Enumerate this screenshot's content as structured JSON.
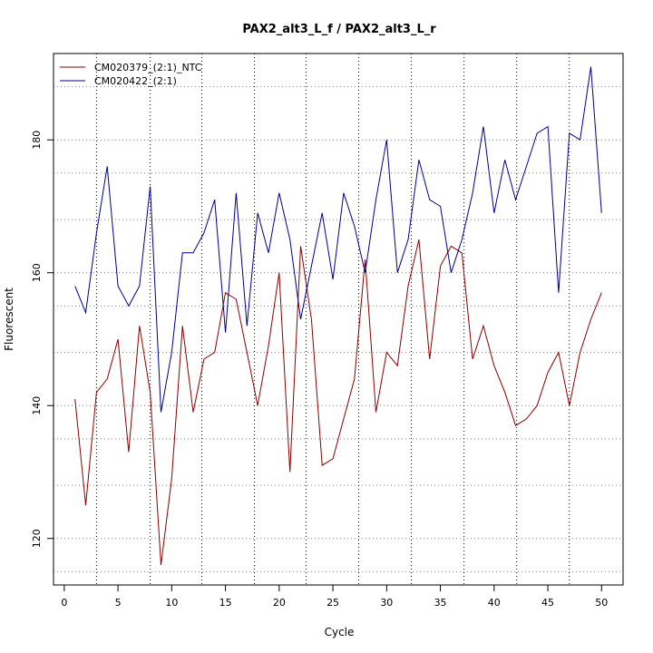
{
  "chart_data": {
    "type": "line",
    "title": "PAX2_alt3_L_f / PAX2_alt3_L_r",
    "xlabel": "Cycle",
    "ylabel": "Fluorescent",
    "xlim": [
      -1,
      52
    ],
    "ylim": [
      113,
      193
    ],
    "x_ticks": [
      0,
      5,
      10,
      15,
      20,
      25,
      30,
      35,
      40,
      45,
      50
    ],
    "y_ticks": [
      120,
      140,
      160,
      180
    ],
    "h_grid": [
      115,
      120,
      128,
      135,
      140,
      148,
      155,
      160,
      168,
      175,
      180,
      188
    ],
    "v_grid": [
      3,
      8,
      12.8,
      17.7,
      22.5,
      27.4,
      32.3,
      37.2,
      42.1,
      47
    ],
    "legend_position": "top-left",
    "x": [
      1,
      2,
      3,
      4,
      5,
      6,
      7,
      8,
      9,
      10,
      11,
      12,
      13,
      14,
      15,
      16,
      17,
      18,
      19,
      20,
      21,
      22,
      23,
      24,
      25,
      26,
      27,
      28,
      29,
      30,
      31,
      32,
      33,
      34,
      35,
      36,
      37,
      38,
      39,
      40,
      41,
      42,
      43,
      44,
      45,
      46,
      47,
      48,
      49,
      50
    ],
    "series": [
      {
        "name": "CM020379_(2:1)_NTC",
        "color": "#8b0000",
        "values": [
          141,
          125,
          142,
          144,
          150,
          133,
          152,
          142,
          116,
          129,
          152,
          139,
          147,
          148,
          157,
          156,
          148,
          140,
          149,
          160,
          130,
          164,
          153,
          131,
          132,
          138,
          144,
          162,
          139,
          148,
          146,
          158,
          165,
          147,
          161,
          164,
          163,
          147,
          152,
          146,
          142,
          137,
          138,
          140,
          145,
          148,
          140,
          148,
          153,
          157
        ]
      },
      {
        "name": "CM020422_(2:1)",
        "color": "#00008b",
        "values": [
          158,
          154,
          166,
          176,
          158,
          155,
          158,
          173,
          139,
          148,
          163,
          163,
          166,
          171,
          151,
          172,
          152,
          169,
          163,
          172,
          165,
          153,
          161,
          169,
          159,
          172,
          167,
          160,
          171,
          180,
          160,
          165,
          177,
          171,
          170,
          160,
          165,
          172,
          182,
          169,
          177,
          171,
          176,
          181,
          182,
          157,
          181,
          180,
          191,
          169
        ]
      }
    ]
  }
}
